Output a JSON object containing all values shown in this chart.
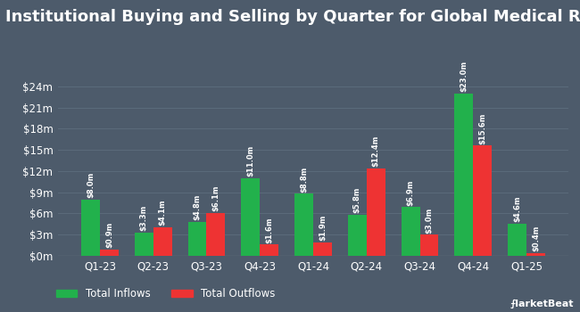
{
  "title": "Institutional Buying and Selling by Quarter for Global Medical REIT",
  "quarters": [
    "Q1-23",
    "Q2-23",
    "Q3-23",
    "Q4-23",
    "Q1-24",
    "Q2-24",
    "Q3-24",
    "Q4-24",
    "Q1-25"
  ],
  "inflows": [
    8.0,
    3.3,
    4.8,
    11.0,
    8.8,
    5.8,
    6.9,
    23.0,
    4.6
  ],
  "outflows": [
    0.9,
    4.1,
    6.1,
    1.6,
    1.9,
    12.4,
    3.0,
    15.6,
    0.4
  ],
  "inflow_labels": [
    "$8.0m",
    "$3.3m",
    "$4.8m",
    "$11.0m",
    "$8.8m",
    "$5.8m",
    "$6.9m",
    "$23.0m",
    "$4.6m"
  ],
  "outflow_labels": [
    "$0.9m",
    "$4.1m",
    "$6.1m",
    "$1.6m",
    "$1.9m",
    "$12.4m",
    "$3.0m",
    "$15.6m",
    "$0.4m"
  ],
  "inflow_color": "#22b14c",
  "outflow_color": "#ee3333",
  "background_color": "#4d5b6b",
  "plot_bg_color": "#4d5b6b",
  "text_color": "#ffffff",
  "grid_color": "#5a6a7a",
  "yticks": [
    0,
    3,
    6,
    9,
    12,
    15,
    18,
    21,
    24
  ],
  "ytick_labels": [
    "$0m",
    "$3m",
    "$6m",
    "$9m",
    "$12m",
    "$15m",
    "$18m",
    "$21m",
    "$24m"
  ],
  "ylim": [
    0,
    26.5
  ],
  "bar_width": 0.35,
  "legend_inflow": "Total Inflows",
  "legend_outflow": "Total Outflows",
  "title_fontsize": 13,
  "label_fontsize": 6.0,
  "tick_fontsize": 8.5
}
